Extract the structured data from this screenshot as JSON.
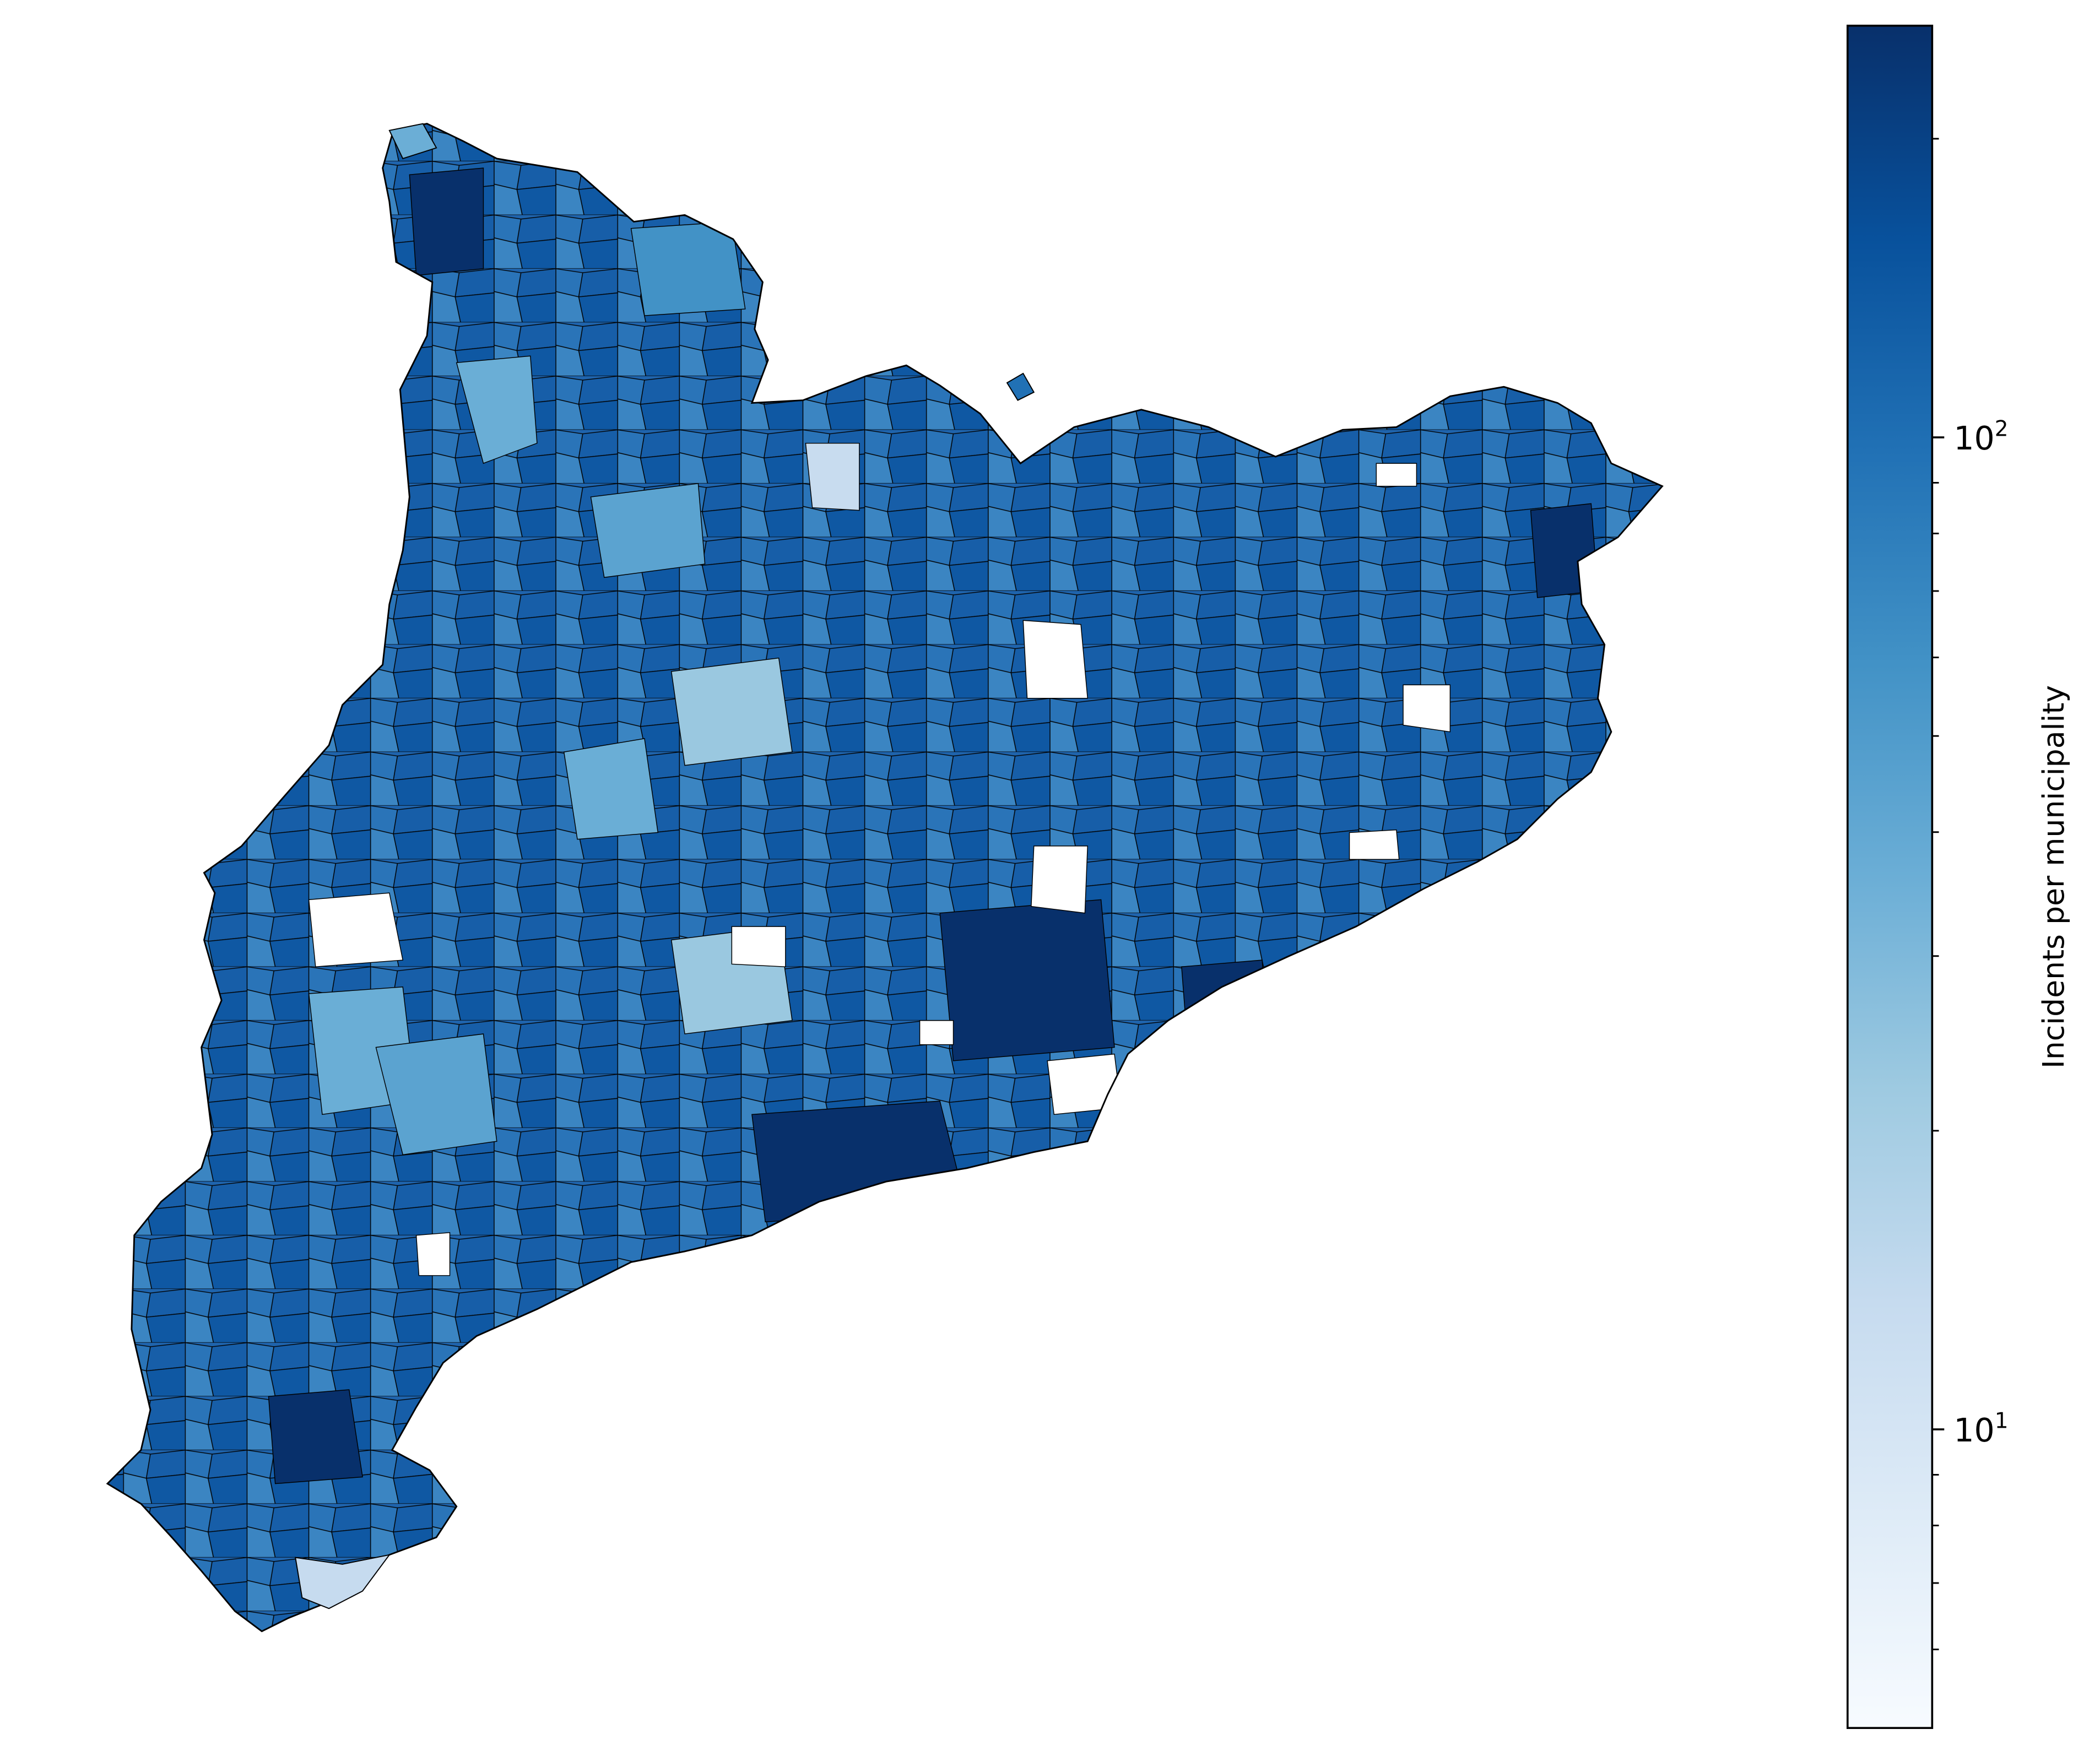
{
  "map": {
    "region": "Catalonia municipalities choropleth",
    "fill_style": "municipal polygons shaded by value",
    "no_data_color": "#ffffff",
    "border_color": "#000000"
  },
  "colorbar": {
    "label": "Incidents per municipality",
    "scale": "log",
    "range": [
      5.0,
      260
    ],
    "colormap": "Blues",
    "stops": [
      "#f7fbff",
      "#deebf7",
      "#c6dbef",
      "#9ecae1",
      "#6baed6",
      "#4292c6",
      "#2171b5",
      "#08519c",
      "#08306b"
    ],
    "major_ticks": [
      {
        "value": 10,
        "base": "10",
        "exp": "1"
      },
      {
        "value": 100,
        "base": "10",
        "exp": "2"
      }
    ],
    "minor_tick_values": [
      6,
      7,
      8,
      9,
      20,
      30,
      40,
      50,
      60,
      70,
      80,
      90,
      200
    ]
  }
}
